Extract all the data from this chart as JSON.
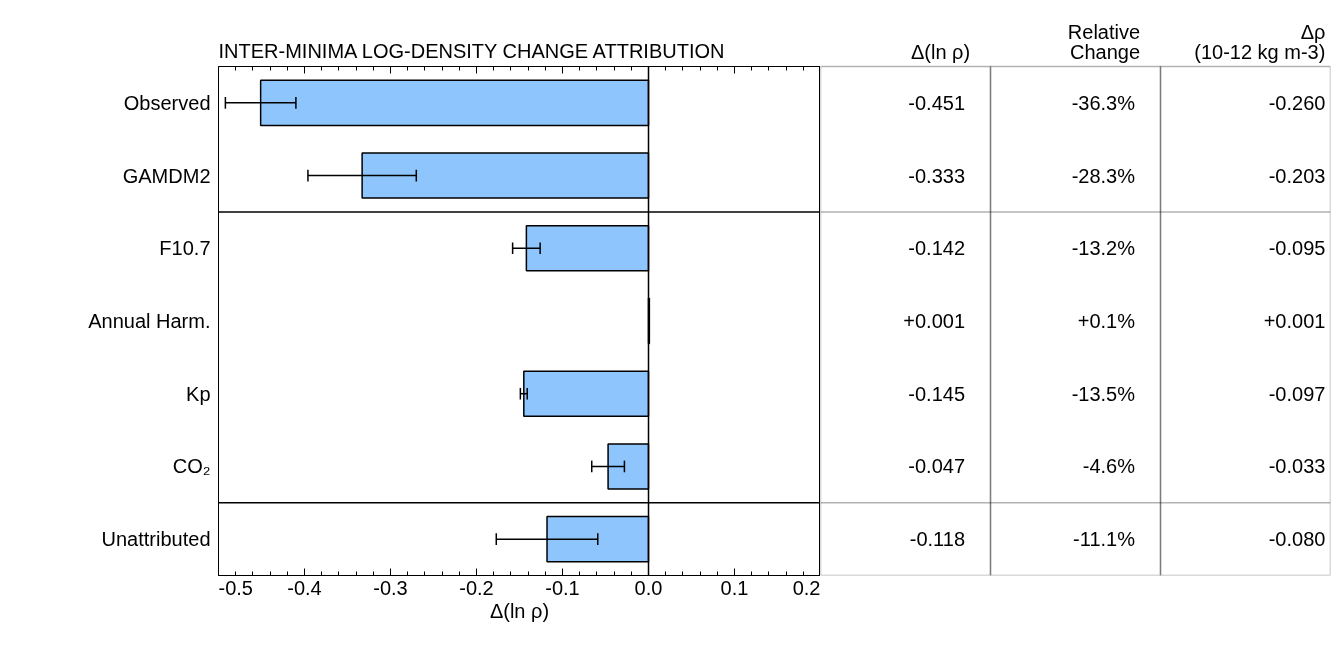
{
  "chart_data": {
    "type": "bar",
    "orientation": "horizontal",
    "title": "INTER-MINIMA LOG-DENSITY CHANGE ATTRIBUTION",
    "xlabel": "Δ(ln ρ)",
    "categories": [
      "Observed",
      "GAMDM2",
      "F10.7",
      "Annual Harm.",
      "Kp",
      "CO₂",
      "Unattributed"
    ],
    "values": [
      -0.451,
      -0.333,
      -0.142,
      0.001,
      -0.145,
      -0.047,
      -0.118
    ],
    "value_labels": [
      "-0.451",
      "-0.333",
      "-0.142",
      "+0.001",
      "-0.145",
      "-0.047",
      "-0.118"
    ],
    "errors": [
      0.041,
      0.063,
      0.016,
      null,
      0.004,
      0.019,
      0.059
    ],
    "color": "#8ec5fc",
    "xlim": [
      -0.5,
      0.2
    ],
    "xticks": [
      {
        "value": -0.5,
        "label": "-0.5"
      },
      {
        "value": -0.4,
        "label": "-0.4"
      },
      {
        "value": -0.3,
        "label": "-0.3"
      },
      {
        "value": -0.2,
        "label": "-0.2"
      },
      {
        "value": -0.1,
        "label": "-0.1"
      },
      {
        "value": 0,
        "label": "0.0"
      },
      {
        "value": 0.1,
        "label": "0.1"
      },
      {
        "value": 0.2,
        "label": "0.2"
      }
    ],
    "ref_lines": [
      {
        "axis": "x",
        "value": 0
      }
    ],
    "grid": false,
    "annotations": [
      "Δ(ln ρ)",
      "Relative\nChange",
      "Δρ\n(10-12 kg m-3)",
      "-36.3%",
      "-28.3%",
      "-13.2%",
      "+0.1%",
      "-13.5%",
      "-4.6%",
      "-11.1%",
      "-0.260",
      "-0.203",
      "-0.095",
      "+0.001",
      "-0.097",
      "-0.033",
      "-0.080"
    ]
  }
}
